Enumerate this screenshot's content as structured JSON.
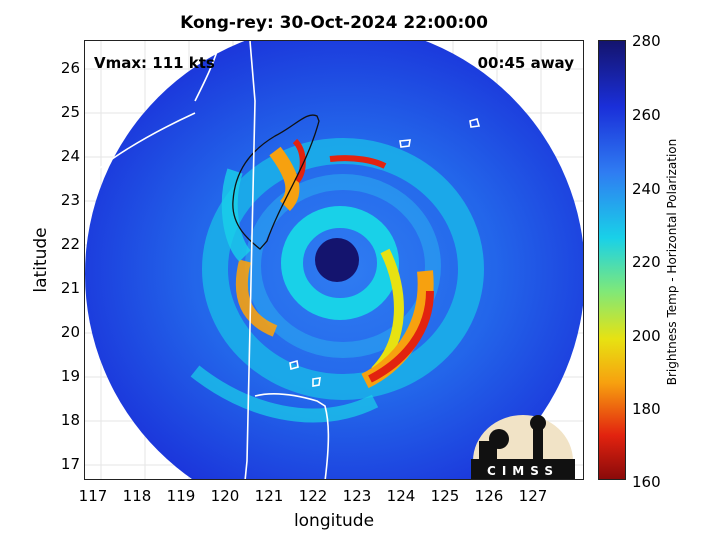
{
  "title": "Kong-rey: 30-Oct-2024 22:00:00",
  "vmax_label": "Vmax: 111 kts",
  "away_label": "00:45 away",
  "xaxis": {
    "label": "longitude",
    "ticks": [
      "117",
      "118",
      "119",
      "120",
      "121",
      "122",
      "123",
      "124",
      "125",
      "126",
      "127"
    ]
  },
  "yaxis": {
    "label": "latitude",
    "ticks": [
      "26",
      "25",
      "24",
      "23",
      "22",
      "21",
      "20",
      "19",
      "18",
      "17"
    ]
  },
  "colorbar": {
    "label": "Brightness Temp - Horizontal Polarization",
    "ticks": [
      "280",
      "260",
      "240",
      "220",
      "200",
      "180",
      "160"
    ],
    "range": [
      160,
      280
    ]
  },
  "logo": {
    "text": "CIMSS"
  },
  "colors": {
    "cold": "#1a2fd9",
    "ring": "#19d1e8",
    "warm": "#e2230f",
    "coast": "#ffffff"
  }
}
